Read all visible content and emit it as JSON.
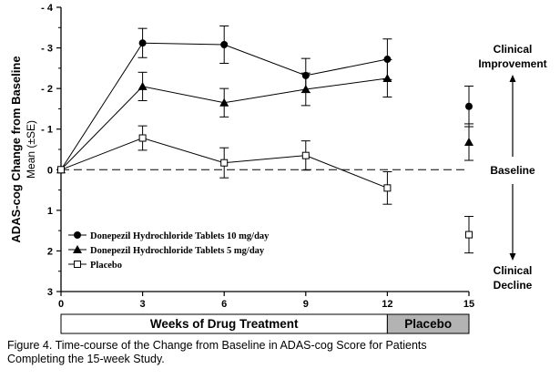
{
  "chart_data": {
    "type": "line",
    "ylabel_main": "ADAS-cog Change from Baseline",
    "ylabel_sub": "Mean (±SE)",
    "x": [
      0,
      3,
      6,
      9,
      12,
      15
    ],
    "x_ticks": [
      "0",
      "3",
      "6",
      "9",
      "12",
      "15"
    ],
    "y_ticks": [
      "- 4",
      "- 3",
      "- 2",
      "- 1",
      "0",
      "1",
      "2",
      "3"
    ],
    "y_tick_values": [
      -4,
      -3,
      -2,
      -1,
      0,
      1,
      2,
      3
    ],
    "ylim": [
      -4,
      3
    ],
    "y_inverted": true,
    "xlim": [
      0,
      15
    ],
    "baseline_dashed": true,
    "series": [
      {
        "name": "Donepezil Hydrochloride Tablets 10 mg/day",
        "marker": "filled-circle",
        "x": [
          0,
          3,
          6,
          9,
          12
        ],
        "y": [
          0,
          -3.12,
          -3.08,
          -2.32,
          -2.72
        ],
        "se": [
          0,
          0.36,
          0.46,
          0.42,
          0.5
        ],
        "extra_point": {
          "x": 15,
          "y": -1.56,
          "se": 0.5
        }
      },
      {
        "name": "Donepezil Hydrochloride Tablets 5 mg/day",
        "marker": "filled-triangle",
        "x": [
          0,
          3,
          6,
          9,
          12
        ],
        "y": [
          0,
          -2.05,
          -1.65,
          -1.98,
          -2.25
        ],
        "se": [
          0,
          0.35,
          0.35,
          0.4,
          0.46
        ],
        "extra_point": {
          "x": 15,
          "y": -0.68,
          "se": 0.45
        }
      },
      {
        "name": "Placebo",
        "marker": "open-square",
        "x": [
          0,
          3,
          6,
          9,
          12
        ],
        "y": [
          0,
          -0.78,
          -0.17,
          -0.35,
          0.45
        ],
        "se": [
          0,
          0.3,
          0.37,
          0.36,
          0.4
        ],
        "extra_point": {
          "x": 15,
          "y": 1.6,
          "se": 0.45
        }
      }
    ],
    "annotations": {
      "improvement": [
        "Clinical",
        "Improvement"
      ],
      "baseline": "Baseline",
      "decline": [
        "Clinical",
        "Decline"
      ]
    },
    "bands": {
      "treatment": "Weeks of Drug Treatment",
      "placebo": "Placebo"
    },
    "legend_position": "bottom-left"
  },
  "caption": {
    "line1": "Figure 4. Time-course of the Change from Baseline in ADAS-cog Score for Patients",
    "line2": "Completing the 15-week Study."
  }
}
